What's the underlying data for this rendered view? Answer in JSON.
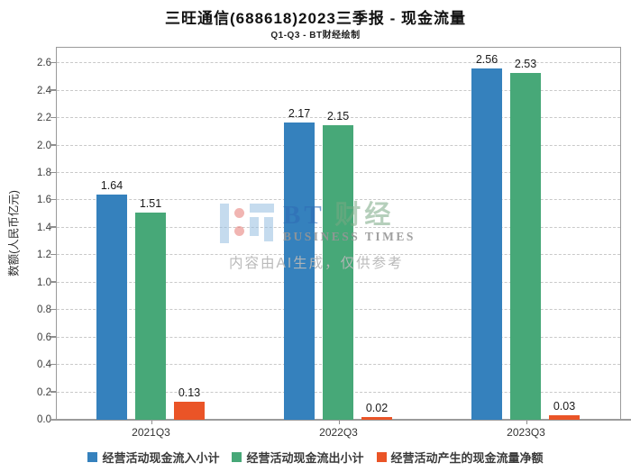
{
  "title": "三旺通信(688618)2023三季报 - 现金流量",
  "subtitle": "Q1-Q3 - BT财经绘制",
  "watermark": {
    "brand_bt": "BT",
    "brand_cn": "财经",
    "brand_en": "BUSINESS TIMES",
    "disclaimer": "内容由AI生成，仅供参考"
  },
  "chart_data": {
    "type": "bar",
    "categories": [
      "2021Q3",
      "2022Q3",
      "2023Q3"
    ],
    "series": [
      {
        "name": "经营活动现金流入小计",
        "color": "#3581bd",
        "values": [
          1.64,
          2.17,
          2.56
        ]
      },
      {
        "name": "经营活动现金流出小计",
        "color": "#47a878",
        "values": [
          1.51,
          2.15,
          2.53
        ]
      },
      {
        "name": "经营活动产生的现金流量净额",
        "color": "#ea5427",
        "values": [
          0.13,
          0.02,
          0.03
        ]
      }
    ],
    "title": "三旺通信(688618)2023三季报 - 现金流量",
    "subtitle": "Q1-Q3 - BT财经绘制",
    "xlabel": "",
    "ylabel": "数额(人民币亿元)",
    "ylim": [
      0,
      2.7
    ],
    "ytick_step": 0.2,
    "ytick_max": 2.6,
    "value_label_decimals": 2,
    "grid": true,
    "grid_style": "dashed",
    "legend_position": "bottom"
  }
}
